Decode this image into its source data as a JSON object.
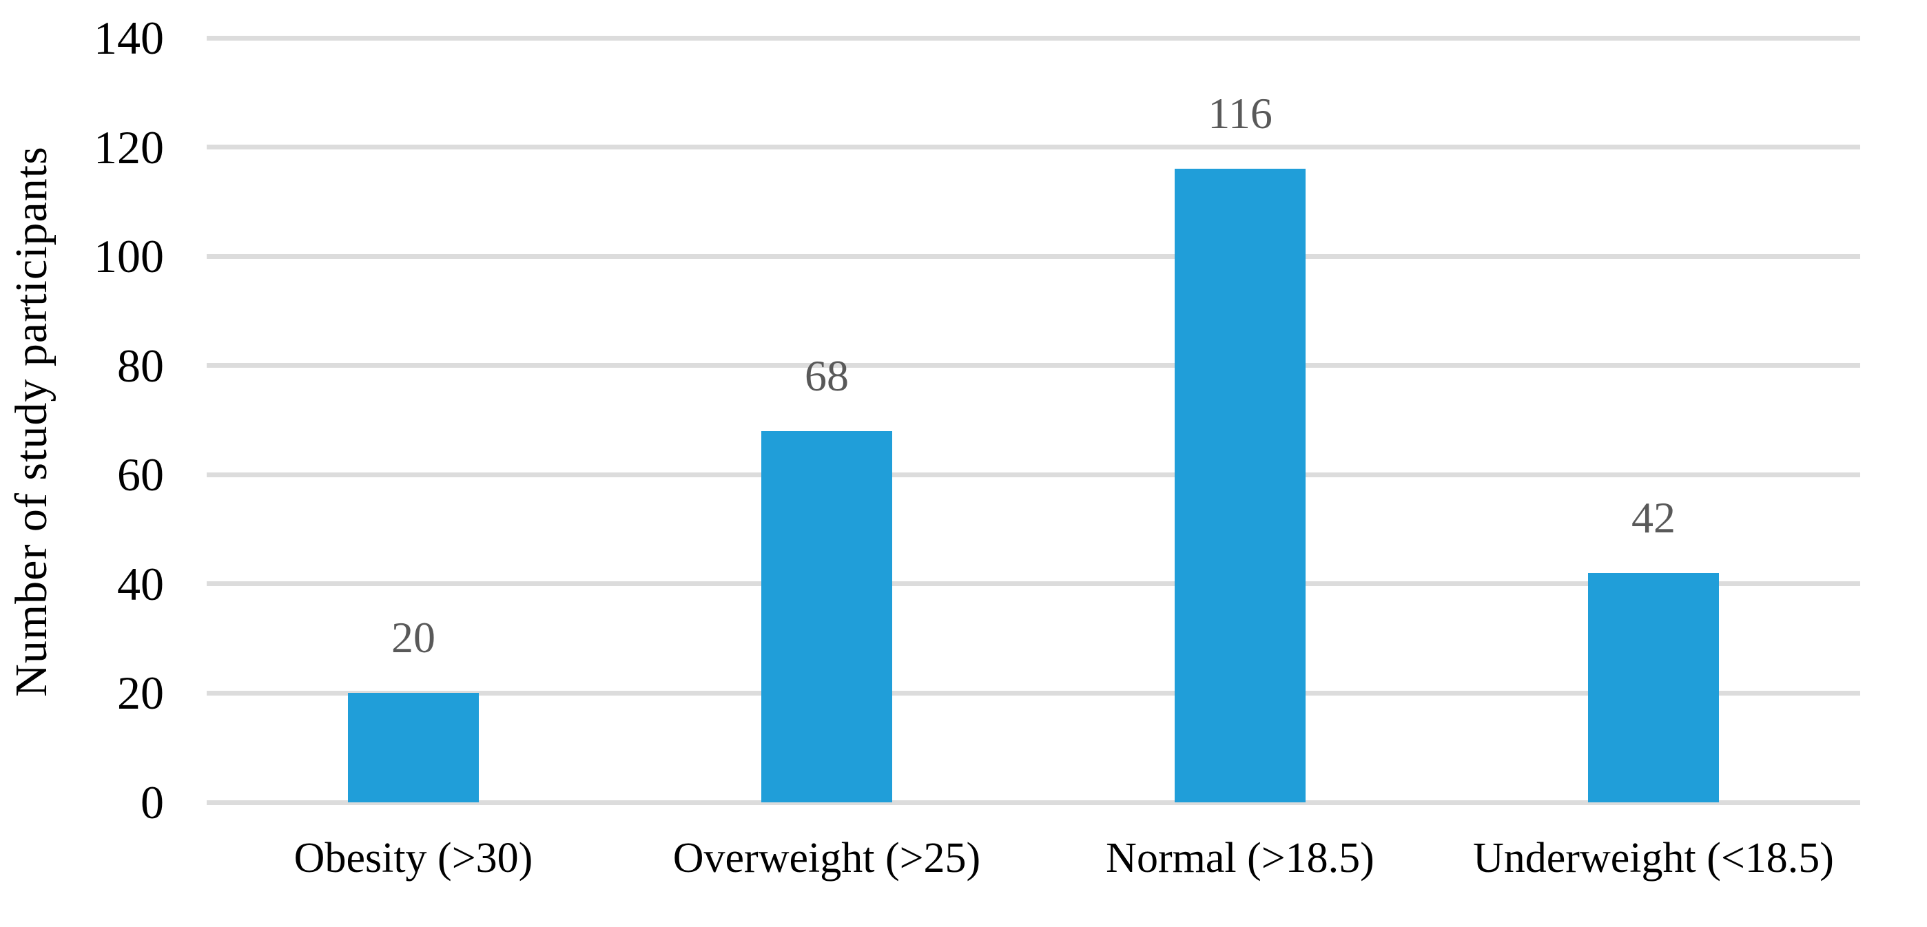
{
  "chart_data": {
    "type": "bar",
    "categories": [
      "Obesity (>30)",
      "Overweight (>25)",
      "Normal (>18.5)",
      "Underweight (<18.5)"
    ],
    "values": [
      20,
      68,
      116,
      42
    ],
    "title": "",
    "xlabel": "",
    "ylabel": "Number of study participants",
    "ylim": [
      0,
      140
    ],
    "yticks": [
      0,
      20,
      40,
      60,
      80,
      100,
      120,
      140
    ],
    "grid": "horizontal-only",
    "legend": "none",
    "show_value_labels": true,
    "colors": {
      "bar": "#209ED9",
      "gridline": "#dcdcdc",
      "value_label": "#595959",
      "axis_text": "#000000"
    }
  }
}
